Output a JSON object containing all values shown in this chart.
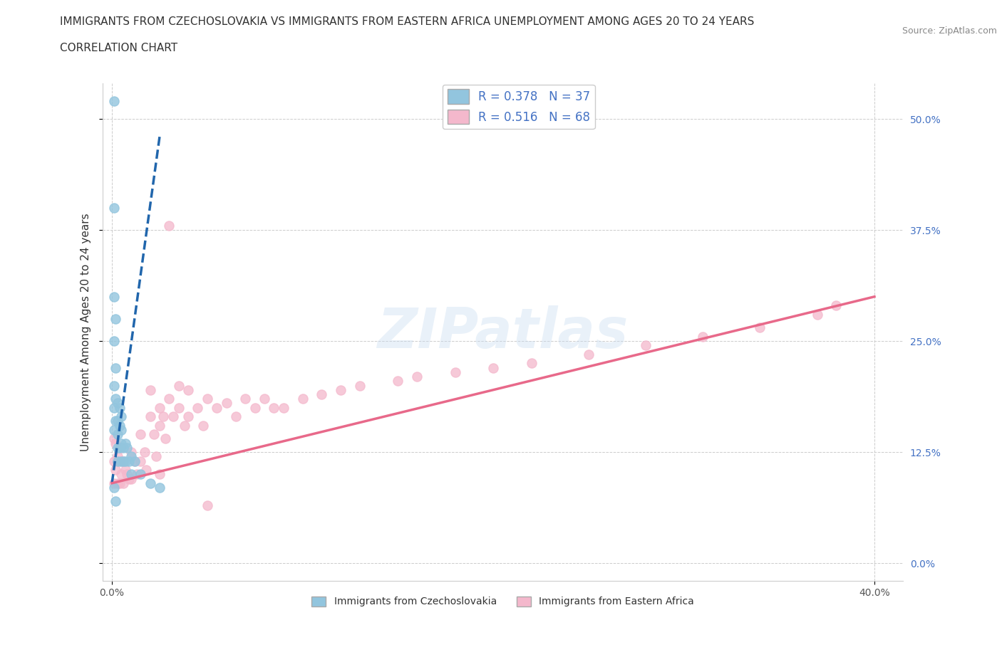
{
  "title_line1": "IMMIGRANTS FROM CZECHOSLOVAKIA VS IMMIGRANTS FROM EASTERN AFRICA UNEMPLOYMENT AMONG AGES 20 TO 24 YEARS",
  "title_line2": "CORRELATION CHART",
  "source_text": "Source: ZipAtlas.com",
  "ylabel": "Unemployment Among Ages 20 to 24 years",
  "xlim": [
    -0.005,
    0.415
  ],
  "ylim": [
    -0.02,
    0.54
  ],
  "xticks": [
    0.0,
    0.4
  ],
  "yticks": [
    0.0,
    0.125,
    0.25,
    0.375,
    0.5
  ],
  "xticklabels": [
    "0.0%",
    "40.0%"
  ],
  "yticklabels_right": [
    "0.0%",
    "12.5%",
    "25.0%",
    "37.5%",
    "50.0%"
  ],
  "color_czech": "#92C5DE",
  "color_africa": "#F4B8CC",
  "color_czech_line": "#2166AC",
  "color_africa_line": "#E8698A",
  "watermark": "ZIPatlas",
  "R_czech": 0.378,
  "N_czech": 37,
  "R_africa": 0.516,
  "N_africa": 68,
  "title_fontsize": 11,
  "subtitle_fontsize": 11,
  "axis_label_fontsize": 11,
  "tick_fontsize": 10,
  "legend_fontsize": 12,
  "source_fontsize": 9,
  "czech_x": [
    0.001,
    0.001,
    0.001,
    0.001,
    0.001,
    0.001,
    0.001,
    0.002,
    0.002,
    0.002,
    0.002,
    0.003,
    0.003,
    0.003,
    0.003,
    0.003,
    0.004,
    0.004,
    0.004,
    0.005,
    0.005,
    0.005,
    0.005,
    0.006,
    0.006,
    0.007,
    0.007,
    0.008,
    0.009,
    0.01,
    0.01,
    0.012,
    0.015,
    0.02,
    0.025,
    0.001,
    0.002
  ],
  "czech_y": [
    0.52,
    0.4,
    0.3,
    0.25,
    0.2,
    0.175,
    0.15,
    0.275,
    0.22,
    0.185,
    0.16,
    0.18,
    0.16,
    0.145,
    0.13,
    0.115,
    0.175,
    0.155,
    0.13,
    0.165,
    0.15,
    0.135,
    0.115,
    0.13,
    0.115,
    0.135,
    0.115,
    0.13,
    0.115,
    0.12,
    0.1,
    0.115,
    0.1,
    0.09,
    0.085,
    0.085,
    0.07
  ],
  "africa_x": [
    0.001,
    0.001,
    0.001,
    0.002,
    0.002,
    0.003,
    0.003,
    0.004,
    0.004,
    0.005,
    0.005,
    0.006,
    0.006,
    0.007,
    0.008,
    0.009,
    0.01,
    0.01,
    0.012,
    0.013,
    0.015,
    0.015,
    0.017,
    0.018,
    0.02,
    0.02,
    0.022,
    0.023,
    0.025,
    0.025,
    0.027,
    0.028,
    0.03,
    0.03,
    0.032,
    0.035,
    0.035,
    0.038,
    0.04,
    0.04,
    0.045,
    0.048,
    0.05,
    0.055,
    0.06,
    0.065,
    0.07,
    0.075,
    0.08,
    0.085,
    0.09,
    0.1,
    0.11,
    0.12,
    0.13,
    0.15,
    0.16,
    0.18,
    0.2,
    0.22,
    0.25,
    0.28,
    0.31,
    0.34,
    0.37,
    0.38,
    0.025,
    0.05
  ],
  "africa_y": [
    0.14,
    0.115,
    0.09,
    0.135,
    0.105,
    0.12,
    0.09,
    0.115,
    0.09,
    0.13,
    0.1,
    0.115,
    0.09,
    0.105,
    0.1,
    0.095,
    0.125,
    0.095,
    0.115,
    0.1,
    0.145,
    0.115,
    0.125,
    0.105,
    0.195,
    0.165,
    0.145,
    0.12,
    0.175,
    0.155,
    0.165,
    0.14,
    0.38,
    0.185,
    0.165,
    0.2,
    0.175,
    0.155,
    0.195,
    0.165,
    0.175,
    0.155,
    0.185,
    0.175,
    0.18,
    0.165,
    0.185,
    0.175,
    0.185,
    0.175,
    0.175,
    0.185,
    0.19,
    0.195,
    0.2,
    0.205,
    0.21,
    0.215,
    0.22,
    0.225,
    0.235,
    0.245,
    0.255,
    0.265,
    0.28,
    0.29,
    0.1,
    0.065
  ],
  "czech_line_x": [
    0.0,
    0.025
  ],
  "czech_line_y": [
    0.09,
    0.48
  ],
  "africa_line_x": [
    0.0,
    0.4
  ],
  "africa_line_y": [
    0.09,
    0.3
  ]
}
